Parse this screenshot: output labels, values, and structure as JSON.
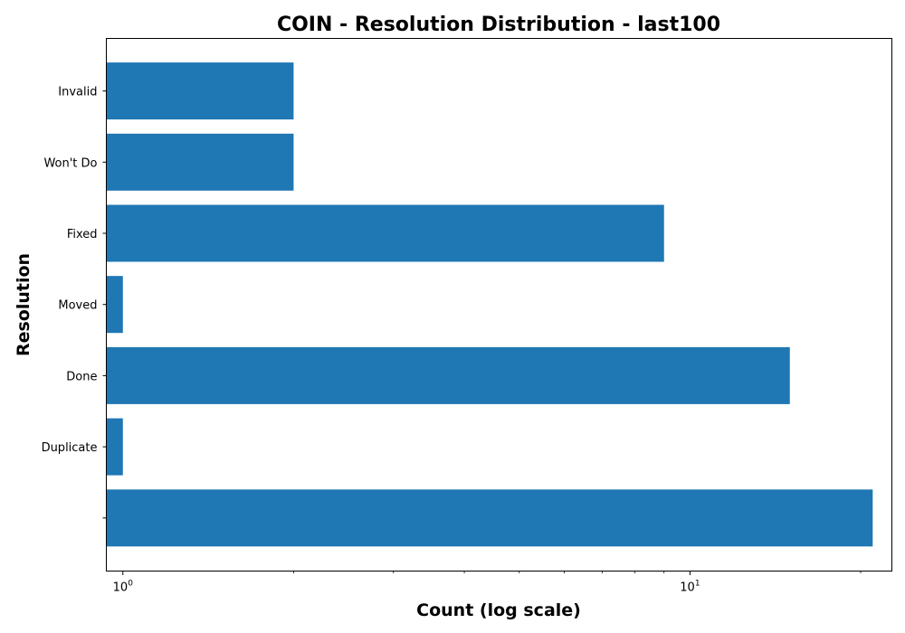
{
  "chart_data": {
    "type": "bar",
    "orientation": "horizontal",
    "title": "COIN - Resolution Distribution - last100",
    "xlabel": "Count (log scale)",
    "ylabel": "Resolution",
    "x_scale": "log",
    "xlim": [
      0.935,
      22.7
    ],
    "x_ticks": [
      {
        "value": 1,
        "base": "10",
        "exp": "0"
      },
      {
        "value": 10,
        "base": "10",
        "exp": "1"
      }
    ],
    "grid": false,
    "legend": "none",
    "bar_color": "#1f77b4",
    "categories": [
      "Invalid",
      "Won't Do",
      "Fixed",
      "Moved",
      "Done",
      "Duplicate",
      ""
    ],
    "values": [
      2,
      2,
      9,
      1,
      15,
      1,
      21
    ]
  }
}
